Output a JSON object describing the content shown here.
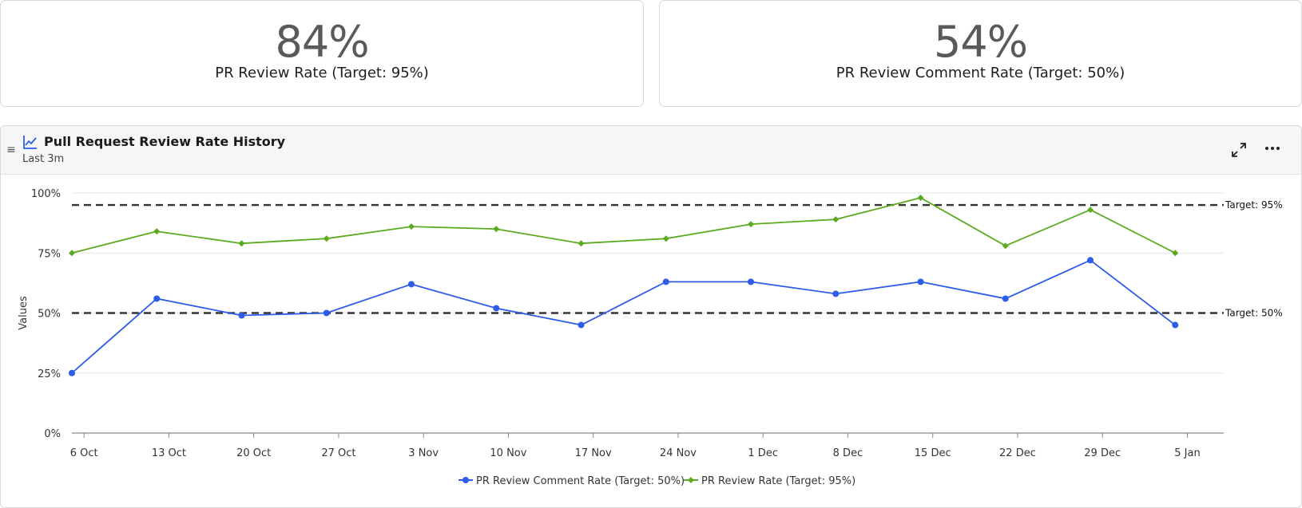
{
  "kpis": [
    {
      "value": "84%",
      "label": "PR Review Rate (Target: 95%)"
    },
    {
      "value": "54%",
      "label": "PR Review Comment Rate (Target: 50%)"
    }
  ],
  "panel": {
    "drag_icon": "drag-handle-icon",
    "title_icon": "line-chart-icon",
    "title": "Pull Request Review Rate History",
    "subtitle": "Last 3m",
    "expand_icon": "expand-icon",
    "more_icon": "more-options-icon"
  },
  "colors": {
    "comment_series": "#2d5ce8",
    "review_series": "#5aab1f",
    "target_line": "#333333",
    "grid": "#e6e6e6"
  },
  "chart_data": {
    "type": "line",
    "ylabel": "Values",
    "ylim": [
      0,
      100
    ],
    "yticks": [
      {
        "value": 0,
        "label": "0%"
      },
      {
        "value": 25,
        "label": "25%"
      },
      {
        "value": 50,
        "label": "50%"
      },
      {
        "value": 75,
        "label": "75%"
      },
      {
        "value": 100,
        "label": "100%"
      }
    ],
    "xrange": [
      "2024-10-05",
      "2025-01-08"
    ],
    "xticks": [
      {
        "date": "2024-10-06",
        "label": "6 Oct"
      },
      {
        "date": "2024-10-13",
        "label": "13 Oct"
      },
      {
        "date": "2024-10-20",
        "label": "20 Oct"
      },
      {
        "date": "2024-10-27",
        "label": "27 Oct"
      },
      {
        "date": "2024-11-03",
        "label": "3 Nov"
      },
      {
        "date": "2024-11-10",
        "label": "10 Nov"
      },
      {
        "date": "2024-11-17",
        "label": "17 Nov"
      },
      {
        "date": "2024-11-24",
        "label": "24 Nov"
      },
      {
        "date": "2024-12-01",
        "label": "1 Dec"
      },
      {
        "date": "2024-12-08",
        "label": "8 Dec"
      },
      {
        "date": "2024-12-15",
        "label": "15 Dec"
      },
      {
        "date": "2024-12-22",
        "label": "22 Dec"
      },
      {
        "date": "2024-12-29",
        "label": "29 Dec"
      },
      {
        "date": "2025-01-05",
        "label": "5 Jan"
      }
    ],
    "x": [
      "2024-10-05",
      "2024-10-12",
      "2024-10-19",
      "2024-10-26",
      "2024-11-02",
      "2024-11-09",
      "2024-11-16",
      "2024-11-23",
      "2024-11-30",
      "2024-12-07",
      "2024-12-14",
      "2024-12-21",
      "2024-12-28",
      "2025-01-04"
    ],
    "series": [
      {
        "name": "PR Review Comment Rate (Target: 50%)",
        "color_key": "comment_series",
        "marker": "circle",
        "values": [
          25,
          56,
          49,
          50,
          62,
          52,
          45,
          63,
          63,
          58,
          63,
          56,
          72,
          45
        ]
      },
      {
        "name": "PR Review Rate (Target: 95%)",
        "color_key": "review_series",
        "marker": "diamond",
        "values": [
          75,
          84,
          79,
          81,
          86,
          85,
          79,
          81,
          87,
          89,
          98,
          78,
          93,
          75
        ]
      }
    ],
    "target_lines": [
      {
        "value": 95,
        "label": "Target: 95%"
      },
      {
        "value": 50,
        "label": "Target: 50%"
      }
    ],
    "grid": true,
    "legend": "bottom-center"
  }
}
